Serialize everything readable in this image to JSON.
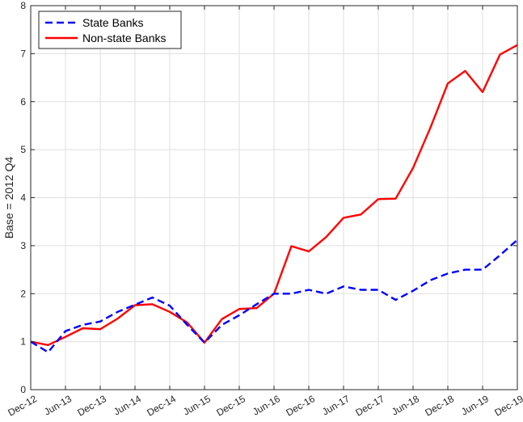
{
  "chart_data": {
    "type": "line",
    "title": "",
    "xlabel": "",
    "ylabel": "Base = 2012 Q4",
    "ylim": [
      0,
      8
    ],
    "yticks": [
      0,
      1,
      2,
      3,
      4,
      5,
      6,
      7,
      8
    ],
    "grid": true,
    "legend_position": "top-left",
    "x_tick_labels": [
      "Dec-12",
      "Jun-13",
      "Dec-13",
      "Jun-14",
      "Dec-14",
      "Jun-15",
      "Dec-15",
      "Jun-16",
      "Dec-16",
      "Jun-17",
      "Dec-17",
      "Jun-18",
      "Dec-18",
      "Jun-19",
      "Dec-19"
    ],
    "x": [
      "2012Q4",
      "2013Q1",
      "2013Q2",
      "2013Q3",
      "2013Q4",
      "2014Q1",
      "2014Q2",
      "2014Q3",
      "2014Q4",
      "2015Q1",
      "2015Q2",
      "2015Q3",
      "2015Q4",
      "2016Q1",
      "2016Q2",
      "2016Q3",
      "2016Q4",
      "2017Q1",
      "2017Q2",
      "2017Q3",
      "2017Q4",
      "2018Q1",
      "2018Q2",
      "2018Q3",
      "2018Q4",
      "2019Q1",
      "2019Q2",
      "2019Q3",
      "2019Q4"
    ],
    "series": [
      {
        "name": "State Banks",
        "color": "#0000ff",
        "style": "dashed",
        "values": [
          1.0,
          0.78,
          1.22,
          1.35,
          1.42,
          1.62,
          1.77,
          1.92,
          1.75,
          1.35,
          0.98,
          1.35,
          1.55,
          1.78,
          2.0,
          2.0,
          2.08,
          2.0,
          2.15,
          2.08,
          2.08,
          1.87,
          2.06,
          2.28,
          2.42,
          2.5,
          2.5,
          2.8,
          3.12
        ]
      },
      {
        "name": "Non-state Banks",
        "color": "#ff0000",
        "style": "solid",
        "values": [
          1.0,
          0.93,
          1.1,
          1.28,
          1.26,
          1.48,
          1.76,
          1.78,
          1.62,
          1.4,
          0.98,
          1.47,
          1.68,
          1.7,
          2.0,
          2.99,
          2.88,
          3.18,
          3.58,
          3.65,
          3.97,
          3.98,
          4.62,
          5.46,
          6.38,
          6.64,
          6.2,
          6.98,
          7.18
        ]
      }
    ]
  }
}
